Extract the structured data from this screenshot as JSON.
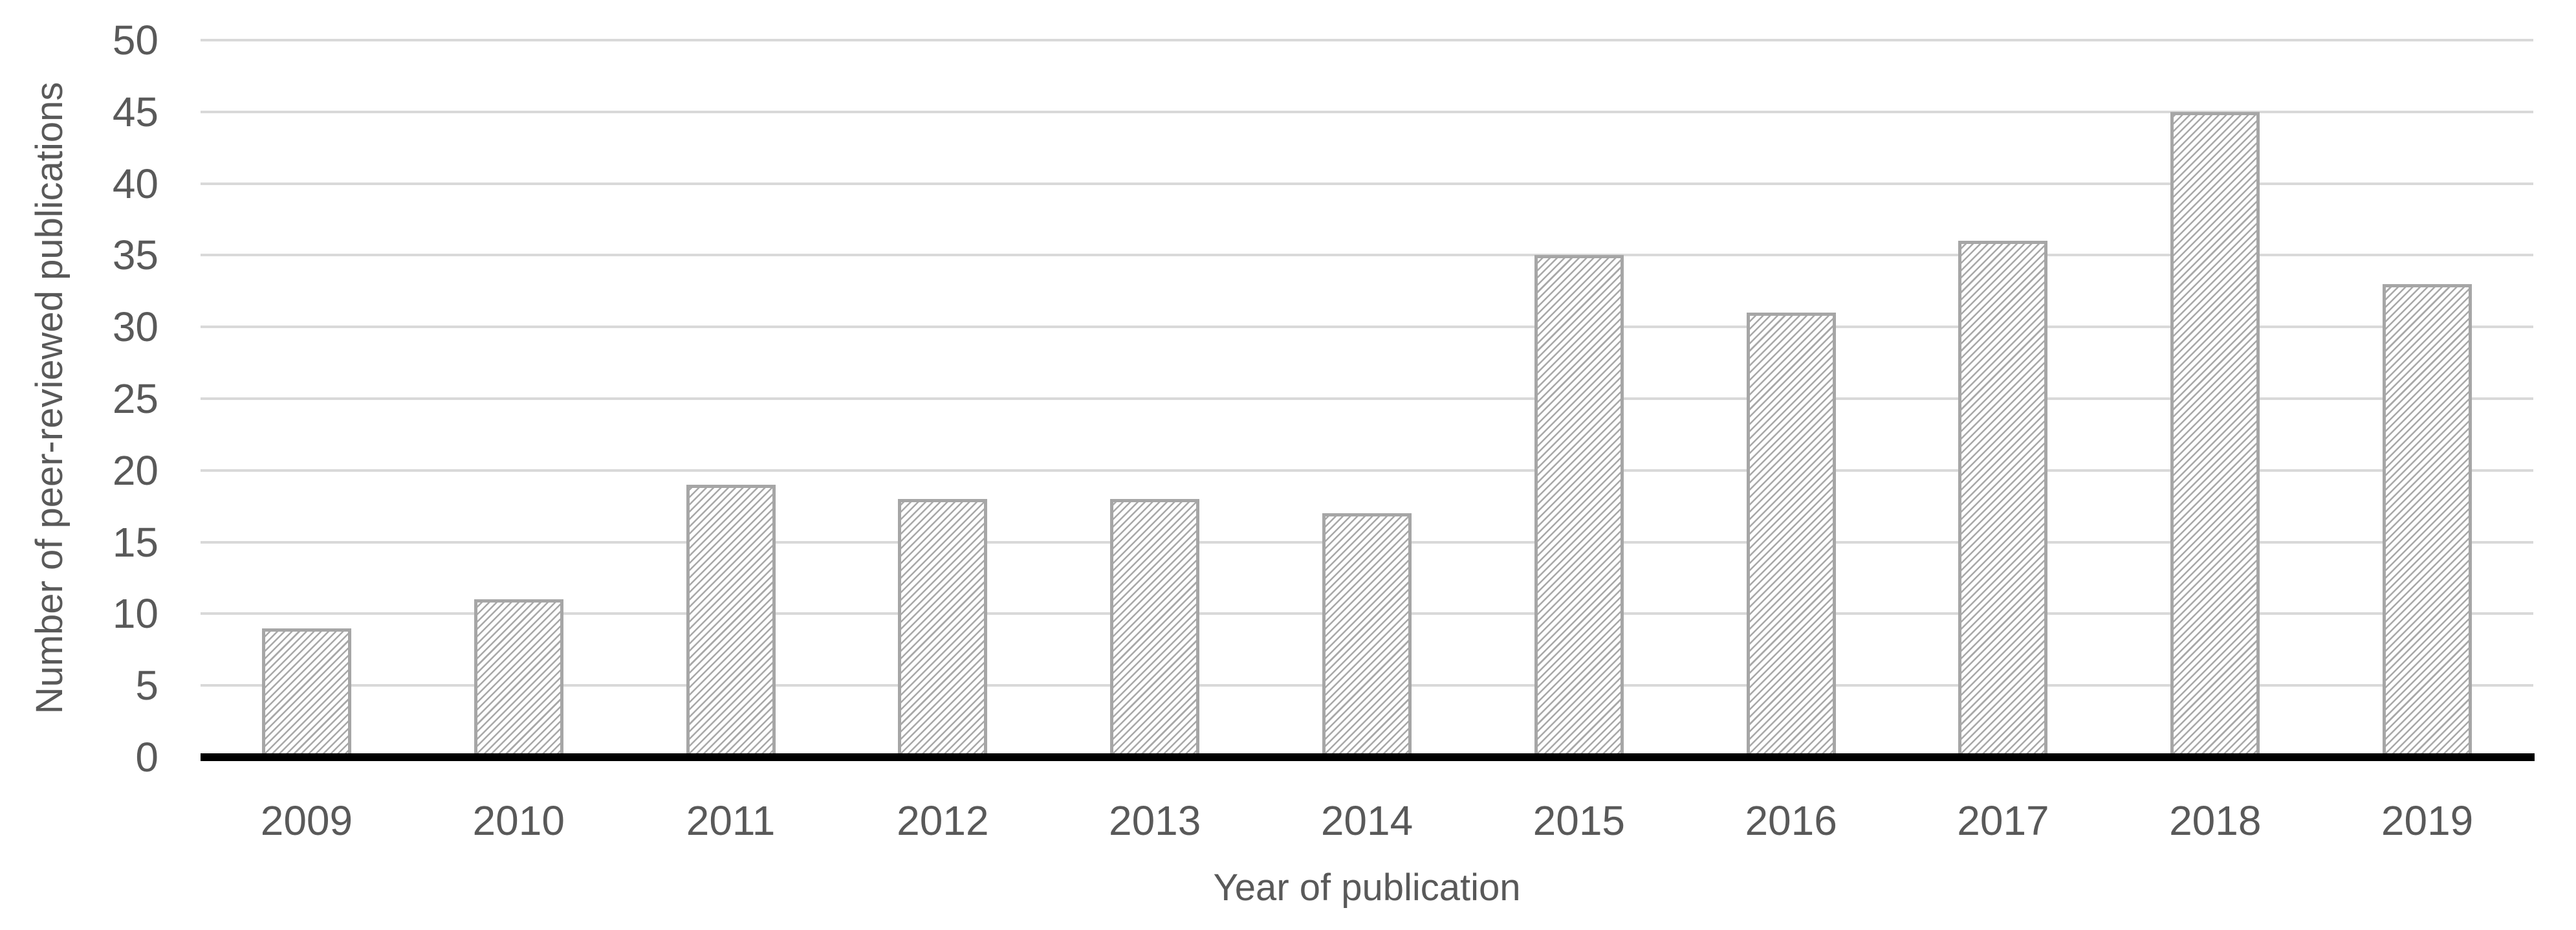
{
  "chart_data": {
    "type": "bar",
    "title": "",
    "categories": [
      "2009",
      "2010",
      "2011",
      "2012",
      "2013",
      "2014",
      "2015",
      "2016",
      "2017",
      "2018",
      "2019"
    ],
    "values": [
      9,
      11,
      19,
      18,
      18,
      17,
      35,
      31,
      36,
      45,
      33
    ],
    "xlabel": "Year of publication",
    "ylabel": "Number of peer-reviewed publications",
    "ylim": [
      0,
      50
    ],
    "ytick_interval": 5,
    "yticks": [
      0,
      5,
      10,
      15,
      20,
      25,
      30,
      35,
      40,
      45,
      50
    ],
    "grid": "horizontal-only",
    "legend": "none",
    "style": {
      "bar_fill": "#ffffff",
      "bar_hatch": "light-upward-diagonal",
      "bar_hatch_color": "#a8a8a8",
      "bar_border_color": "#a6a6a6",
      "gridline_color": "#d9d9d9",
      "axis_line_color": "#000000",
      "text_color": "#595959",
      "background": "#ffffff"
    }
  }
}
